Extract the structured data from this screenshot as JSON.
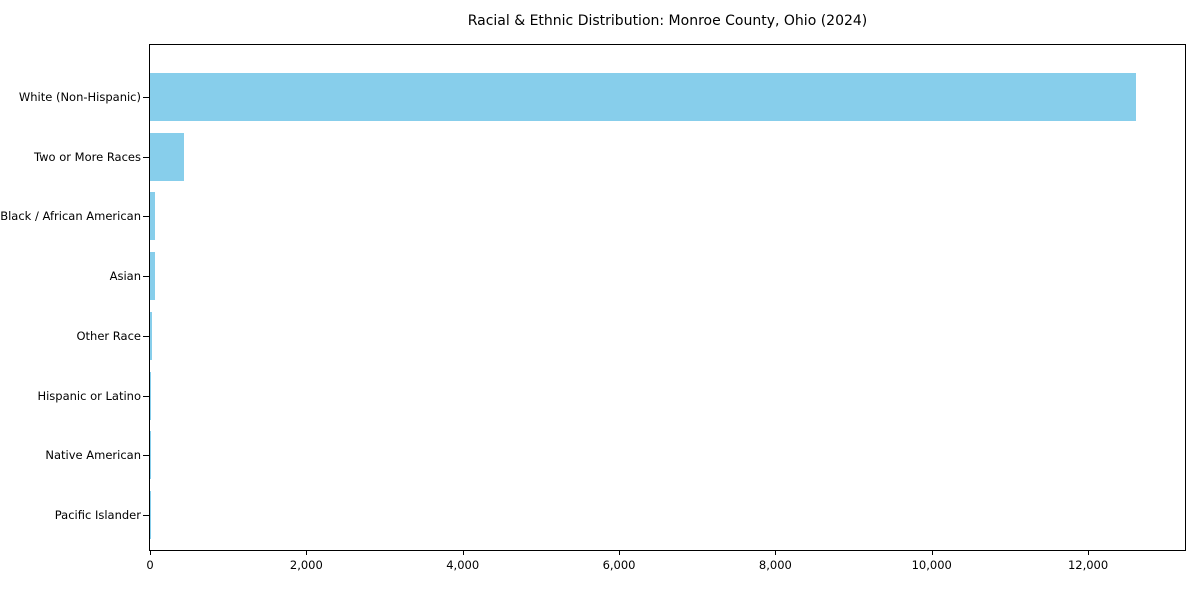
{
  "chart_data": {
    "type": "bar",
    "orientation": "horizontal",
    "title": "Racial & Ethnic Distribution: Monroe County, Ohio (2024)",
    "categories": [
      "White (Non-Hispanic)",
      "Two or More Races",
      "Black / African American",
      "Asian",
      "Other Race",
      "Hispanic or Latino",
      "Native American",
      "Pacific Islander"
    ],
    "values": [
      12613,
      432,
      66,
      64,
      31,
      13,
      5,
      2
    ],
    "xlabel": "",
    "ylabel": "",
    "xlim": [
      0,
      13240
    ],
    "xtick_values": [
      0,
      2000,
      4000,
      6000,
      8000,
      10000,
      12000
    ],
    "xtick_labels": [
      "0",
      "2,000",
      "4,000",
      "6,000",
      "8,000",
      "10,000",
      "12,000"
    ],
    "bar_color": "#87CEEB",
    "axis_color": "#000000",
    "background_color": "#FFFFFF",
    "grid": false
  }
}
